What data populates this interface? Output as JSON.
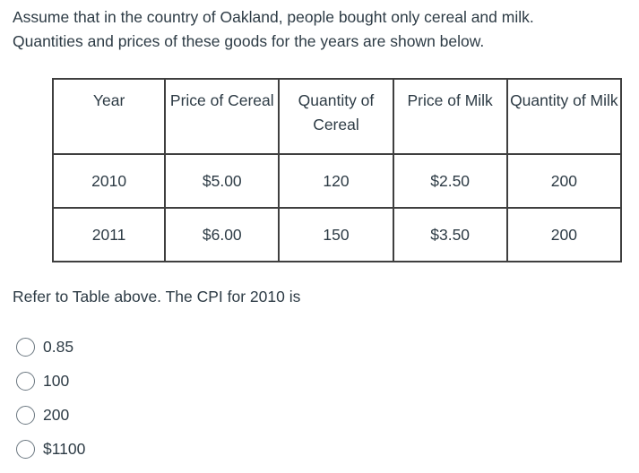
{
  "intro": {
    "line1": "Assume that in the country of Oakland, people bought only cereal and milk.",
    "line2": "Quantities and prices of these goods for the years are shown below."
  },
  "table": {
    "headers": [
      "Year",
      "Price of Cereal",
      "Quantity of Cereal",
      "Price of Milk",
      "Quantity of Milk"
    ],
    "rows": [
      [
        "2010",
        "$5.00",
        "120",
        "$2.50",
        "200"
      ],
      [
        "2011",
        "$6.00",
        "150",
        "$3.50",
        "200"
      ]
    ]
  },
  "question": "Refer to Table above. The CPI for 2010 is",
  "options": [
    "0.85",
    "100",
    "200",
    "$1100"
  ]
}
